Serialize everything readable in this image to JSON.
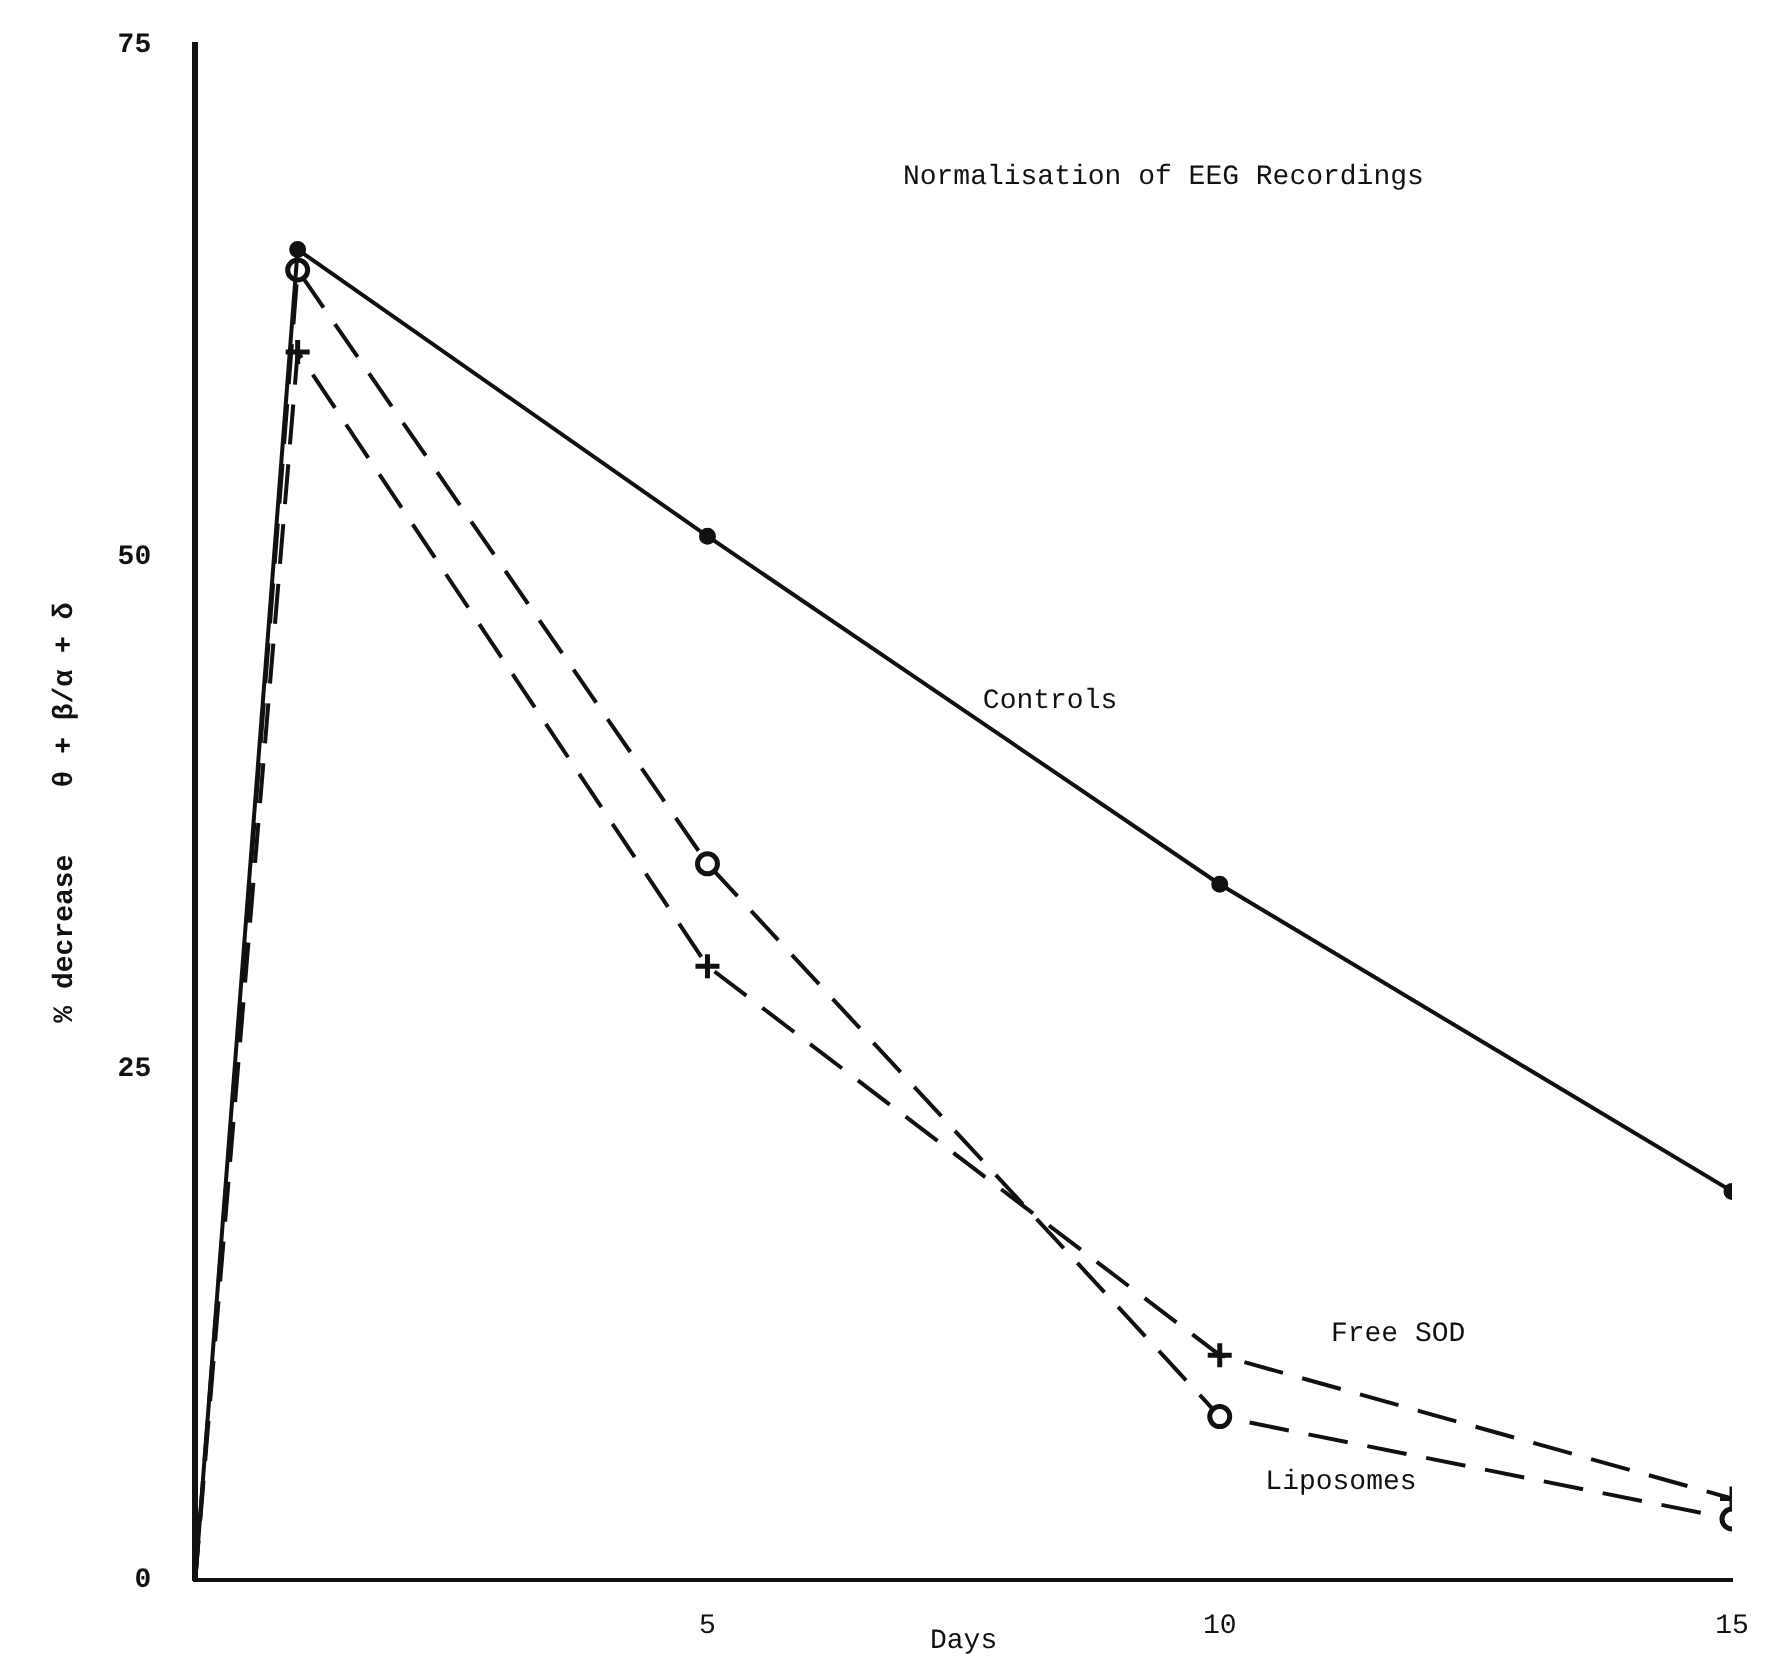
{
  "chart_data": {
    "type": "line",
    "title": "Normalisation of EEG Recordings",
    "xlabel": "Days",
    "ylabel": "% decrease    θ + β/α + δ",
    "xlim": [
      0,
      15
    ],
    "xticks": [
      5,
      10,
      15
    ],
    "ylim": [
      0,
      75
    ],
    "yticks": [
      0,
      25,
      50,
      75
    ],
    "grid": false,
    "legend": false,
    "series": [
      {
        "name": "Controls",
        "color": "#111111",
        "x": [
          0,
          1,
          5,
          10,
          15
        ],
        "values": [
          0,
          65,
          51,
          34,
          19
        ],
        "marker": "circle",
        "line_style": "solid"
      },
      {
        "name": "Liposomes",
        "color": "#111111",
        "x": [
          0,
          1,
          5,
          10,
          15
        ],
        "values": [
          0,
          64,
          35,
          8,
          3
        ],
        "marker": "circle",
        "line_style": "dashed"
      },
      {
        "name": "Free SOD",
        "color": "#111111",
        "x": [
          0,
          1,
          5,
          10,
          15
        ],
        "values": [
          0,
          60,
          30,
          11,
          4
        ],
        "marker": "cross",
        "line_style": "dashed"
      }
    ]
  }
}
